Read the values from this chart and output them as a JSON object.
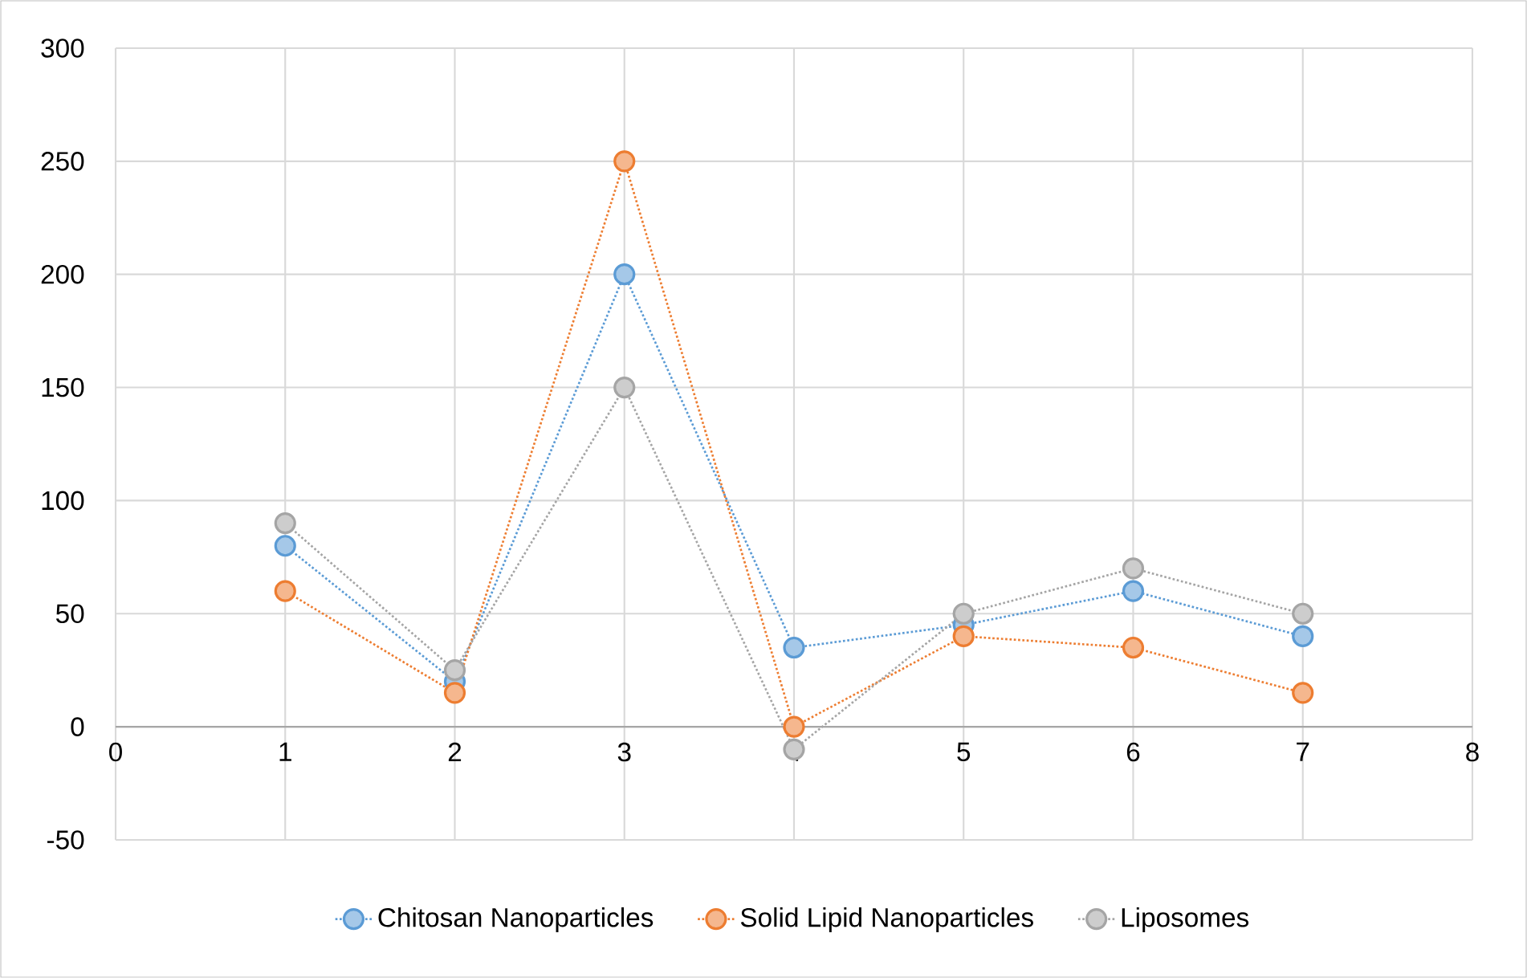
{
  "chart_data": {
    "type": "line",
    "x": [
      1,
      2,
      3,
      4,
      5,
      6,
      7
    ],
    "series": [
      {
        "name": "Chitosan Nanoparticles",
        "color": "#5b9bd5",
        "values": [
          80,
          20,
          200,
          35,
          45,
          60,
          40
        ]
      },
      {
        "name": "Solid Lipid Nanoparticles",
        "color": "#ed7d31",
        "values": [
          60,
          15,
          250,
          0,
          40,
          35,
          15
        ]
      },
      {
        "name": "Liposomes",
        "color": "#a5a5a5",
        "values": [
          90,
          25,
          150,
          -10,
          50,
          70,
          50
        ]
      }
    ],
    "xlim": [
      0,
      8
    ],
    "ylim": [
      -50,
      300
    ],
    "xticks": [
      0,
      1,
      2,
      3,
      4,
      5,
      6,
      7,
      8
    ],
    "yticks": [
      -50,
      0,
      50,
      100,
      150,
      200,
      250,
      300
    ],
    "grid": true,
    "legend": "bottom",
    "marker": "circle",
    "line_style": "dotted"
  }
}
